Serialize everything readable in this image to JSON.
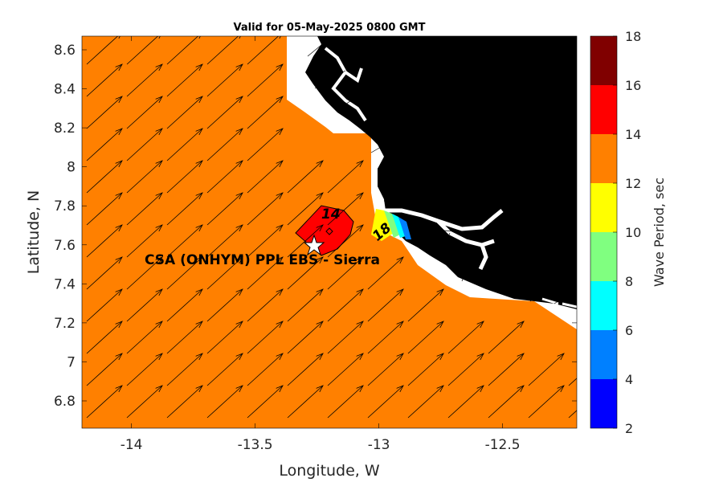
{
  "title": "Valid for 05-May-2025 0800 GMT",
  "x_axis": {
    "label": "Longitude, W",
    "range": [
      -14.2,
      -12.2
    ],
    "ticks": [
      -14,
      -13.5,
      -13,
      -12.5
    ],
    "tick_labels": [
      "-14",
      "-13.5",
      "-13",
      "-12.5"
    ]
  },
  "y_axis": {
    "label": "Latitude, N",
    "range": [
      6.66,
      8.67
    ],
    "ticks": [
      6.8,
      7,
      7.2,
      7.4,
      7.6,
      7.8,
      8,
      8.2,
      8.4,
      8.6
    ],
    "tick_labels": [
      "6.8",
      "7",
      "7.2",
      "7.4",
      "7.6",
      "7.8",
      "8",
      "8.2",
      "8.4",
      "8.6"
    ]
  },
  "colorbar": {
    "label": "Wave Period, sec",
    "range": [
      2,
      18
    ],
    "ticks": [
      2,
      4,
      6,
      8,
      10,
      12,
      14,
      16,
      18
    ],
    "tick_labels": [
      "2",
      "4",
      "6",
      "8",
      "10",
      "12",
      "14",
      "16",
      "18"
    ],
    "bands": [
      {
        "from": 2,
        "to": 4,
        "color": "#0000ff"
      },
      {
        "from": 4,
        "to": 6,
        "color": "#0080ff"
      },
      {
        "from": 6,
        "to": 8,
        "color": "#00ffff"
      },
      {
        "from": 8,
        "to": 10,
        "color": "#80ff80"
      },
      {
        "from": 10,
        "to": 12,
        "color": "#ffff00"
      },
      {
        "from": 12,
        "to": 14,
        "color": "#ff8000"
      },
      {
        "from": 14,
        "to": 16,
        "color": "#ff0000"
      },
      {
        "from": 16,
        "to": 18,
        "color": "#800000"
      }
    ]
  },
  "colors": {
    "sea_field": "#ff8000",
    "peak_field": "#ff0000",
    "land": "#000000",
    "no_data": "#ffffff",
    "arrow": "#000000"
  },
  "site": {
    "label": "CSA (ONHYM) PPL EBS  - Sierra",
    "lon": -13.22,
    "lat": 7.59,
    "marker": "white-star-icon"
  },
  "contour_labels": [
    {
      "text": "14",
      "lon": -13.17,
      "lat": 7.77
    },
    {
      "text": "18",
      "lon": -12.95,
      "lat": 7.63
    }
  ],
  "chart_data": {
    "type": "heatmap",
    "title": "Valid for 05-May-2025 0800 GMT",
    "xlabel": "Longitude, W",
    "ylabel": "Latitude, N",
    "xlim": [
      -14.2,
      -12.2
    ],
    "ylim": [
      6.66,
      8.67
    ],
    "colorbar_label": "Wave Period, sec",
    "clim": [
      2,
      18
    ],
    "background_period_band": [
      12,
      14
    ],
    "peak_region_period_band": [
      14,
      16
    ],
    "nearshore_period_range": [
      4,
      12
    ],
    "wave_direction": "toward northeast",
    "grid": false,
    "legend": "colorbar right"
  }
}
